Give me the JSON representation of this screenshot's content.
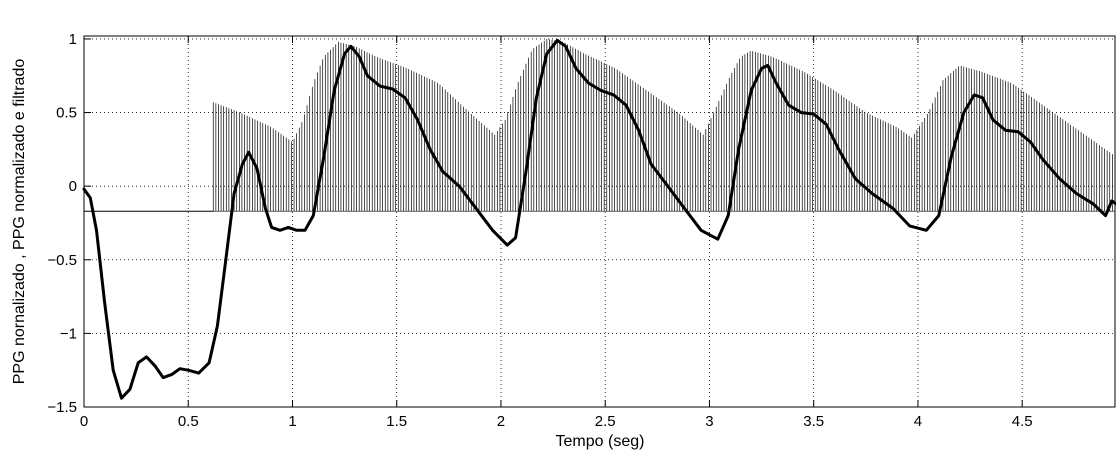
{
  "chart_data": {
    "type": "line",
    "xlabel": "Tempo (seg)",
    "ylabel": "PPG nornalizado , PPG normalizado e filtrado",
    "xlim": [
      0,
      4.95
    ],
    "ylim": [
      -1.5,
      1.02
    ],
    "grid": true,
    "x_ticks": [
      0,
      0.5,
      1,
      1.5,
      2,
      2.5,
      3,
      3.5,
      4,
      4.5
    ],
    "x_tick_labels": [
      "0",
      "0.5",
      "1",
      "1.5",
      "2",
      "2.5",
      "3",
      "3.5",
      "4",
      "4.5"
    ],
    "y_ticks": [
      -1.5,
      -1,
      -0.5,
      0,
      0.5,
      1
    ],
    "y_tick_labels": [
      "−1.5",
      "−1",
      "−0.5",
      "0",
      "0.5",
      "1"
    ],
    "series": [
      {
        "style": "stem",
        "color": "#000000",
        "baseline": -0.17,
        "sample_step": 0.0125,
        "x_start": 0.62,
        "envelope": [
          [
            0.0,
            -0.17
          ],
          [
            0.615,
            -0.17
          ],
          [
            0.62,
            0.57
          ],
          [
            0.75,
            0.5
          ],
          [
            0.9,
            0.4
          ],
          [
            1.0,
            0.3
          ],
          [
            1.05,
            0.45
          ],
          [
            1.1,
            0.7
          ],
          [
            1.15,
            0.88
          ],
          [
            1.22,
            0.98
          ],
          [
            1.3,
            0.95
          ],
          [
            1.4,
            0.88
          ],
          [
            1.55,
            0.8
          ],
          [
            1.7,
            0.7
          ],
          [
            1.85,
            0.5
          ],
          [
            1.97,
            0.35
          ],
          [
            2.02,
            0.45
          ],
          [
            2.08,
            0.7
          ],
          [
            2.15,
            0.93
          ],
          [
            2.22,
            1.0
          ],
          [
            2.3,
            0.98
          ],
          [
            2.4,
            0.9
          ],
          [
            2.55,
            0.8
          ],
          [
            2.7,
            0.65
          ],
          [
            2.85,
            0.5
          ],
          [
            2.97,
            0.35
          ],
          [
            3.02,
            0.5
          ],
          [
            3.1,
            0.75
          ],
          [
            3.15,
            0.88
          ],
          [
            3.2,
            0.92
          ],
          [
            3.3,
            0.88
          ],
          [
            3.45,
            0.78
          ],
          [
            3.6,
            0.65
          ],
          [
            3.75,
            0.5
          ],
          [
            3.9,
            0.4
          ],
          [
            3.97,
            0.33
          ],
          [
            4.05,
            0.5
          ],
          [
            4.12,
            0.72
          ],
          [
            4.2,
            0.82
          ],
          [
            4.3,
            0.78
          ],
          [
            4.45,
            0.7
          ],
          [
            4.6,
            0.55
          ],
          [
            4.75,
            0.4
          ],
          [
            4.9,
            0.25
          ],
          [
            4.95,
            0.2
          ]
        ]
      },
      {
        "style": "line",
        "color": "#000000",
        "points": [
          [
            0.0,
            -0.02
          ],
          [
            0.03,
            -0.08
          ],
          [
            0.06,
            -0.3
          ],
          [
            0.1,
            -0.8
          ],
          [
            0.14,
            -1.25
          ],
          [
            0.18,
            -1.44
          ],
          [
            0.22,
            -1.38
          ],
          [
            0.26,
            -1.2
          ],
          [
            0.3,
            -1.16
          ],
          [
            0.34,
            -1.22
          ],
          [
            0.38,
            -1.3
          ],
          [
            0.42,
            -1.28
          ],
          [
            0.46,
            -1.24
          ],
          [
            0.5,
            -1.25
          ],
          [
            0.55,
            -1.27
          ],
          [
            0.6,
            -1.2
          ],
          [
            0.64,
            -0.95
          ],
          [
            0.68,
            -0.5
          ],
          [
            0.72,
            -0.05
          ],
          [
            0.76,
            0.15
          ],
          [
            0.79,
            0.23
          ],
          [
            0.83,
            0.12
          ],
          [
            0.87,
            -0.15
          ],
          [
            0.9,
            -0.28
          ],
          [
            0.94,
            -0.3
          ],
          [
            0.98,
            -0.28
          ],
          [
            1.02,
            -0.3
          ],
          [
            1.06,
            -0.3
          ],
          [
            1.1,
            -0.2
          ],
          [
            1.15,
            0.2
          ],
          [
            1.2,
            0.65
          ],
          [
            1.25,
            0.9
          ],
          [
            1.28,
            0.95
          ],
          [
            1.32,
            0.88
          ],
          [
            1.36,
            0.75
          ],
          [
            1.42,
            0.68
          ],
          [
            1.48,
            0.66
          ],
          [
            1.54,
            0.6
          ],
          [
            1.6,
            0.45
          ],
          [
            1.66,
            0.25
          ],
          [
            1.72,
            0.1
          ],
          [
            1.8,
            0.0
          ],
          [
            1.88,
            -0.15
          ],
          [
            1.96,
            -0.3
          ],
          [
            2.03,
            -0.4
          ],
          [
            2.07,
            -0.35
          ],
          [
            2.12,
            0.1
          ],
          [
            2.17,
            0.6
          ],
          [
            2.22,
            0.9
          ],
          [
            2.27,
            0.99
          ],
          [
            2.31,
            0.95
          ],
          [
            2.36,
            0.8
          ],
          [
            2.42,
            0.7
          ],
          [
            2.48,
            0.65
          ],
          [
            2.54,
            0.62
          ],
          [
            2.6,
            0.55
          ],
          [
            2.66,
            0.38
          ],
          [
            2.72,
            0.15
          ],
          [
            2.8,
            0.0
          ],
          [
            2.88,
            -0.15
          ],
          [
            2.96,
            -0.3
          ],
          [
            3.04,
            -0.36
          ],
          [
            3.09,
            -0.2
          ],
          [
            3.14,
            0.25
          ],
          [
            3.2,
            0.65
          ],
          [
            3.25,
            0.8
          ],
          [
            3.28,
            0.82
          ],
          [
            3.32,
            0.7
          ],
          [
            3.38,
            0.55
          ],
          [
            3.44,
            0.5
          ],
          [
            3.5,
            0.49
          ],
          [
            3.56,
            0.42
          ],
          [
            3.62,
            0.25
          ],
          [
            3.7,
            0.05
          ],
          [
            3.78,
            -0.05
          ],
          [
            3.88,
            -0.15
          ],
          [
            3.96,
            -0.27
          ],
          [
            4.04,
            -0.3
          ],
          [
            4.1,
            -0.2
          ],
          [
            4.16,
            0.2
          ],
          [
            4.22,
            0.5
          ],
          [
            4.27,
            0.62
          ],
          [
            4.31,
            0.6
          ],
          [
            4.36,
            0.45
          ],
          [
            4.42,
            0.38
          ],
          [
            4.48,
            0.37
          ],
          [
            4.54,
            0.3
          ],
          [
            4.6,
            0.18
          ],
          [
            4.68,
            0.05
          ],
          [
            4.76,
            -0.05
          ],
          [
            4.84,
            -0.12
          ],
          [
            4.9,
            -0.2
          ],
          [
            4.93,
            -0.1
          ],
          [
            4.95,
            -0.12
          ]
        ]
      }
    ]
  }
}
